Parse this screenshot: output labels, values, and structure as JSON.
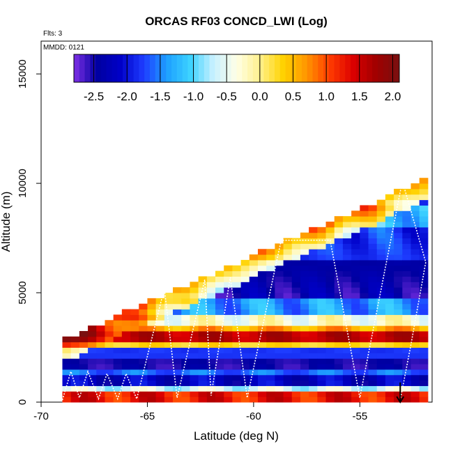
{
  "chart_data": {
    "type": "heatmap",
    "title": "ORCAS RF03 CONCD_LWI (Log)",
    "annotations": {
      "flights": "Flts: 3",
      "date": "MMDD: 0121"
    },
    "xlabel": "Latitude (deg N)",
    "ylabel": "Altitude (m)",
    "xlim": [
      -70,
      -51.6
    ],
    "ylim": [
      0,
      16500
    ],
    "x_ticks": [
      -70,
      -65,
      -60,
      -55
    ],
    "x_tick_labels": [
      "-70",
      "-65",
      "-60",
      "-55"
    ],
    "y_ticks": [
      0,
      5000,
      10000,
      15000
    ],
    "y_tick_labels": [
      "0",
      "5000",
      "10000",
      "15000"
    ],
    "colorbar": {
      "range": [
        -2.8,
        2.1
      ],
      "ticks": [
        -2.5,
        -2.0,
        -1.5,
        -1.0,
        -0.5,
        0.0,
        0.5,
        1.0,
        1.5,
        2.0
      ],
      "tick_labels": [
        "-2.5",
        "-2.0",
        "-1.5",
        "-1.0",
        "-0.5",
        "0.0",
        "0.5",
        "1.0",
        "1.5",
        "2.0"
      ],
      "colors": [
        "#7f2fe6",
        "#0000a0",
        "#0000c8",
        "#1e3cff",
        "#1ea0ff",
        "#3cd2ff",
        "#c8f0ff",
        "#ffffe6",
        "#fff08c",
        "#ffd200",
        "#ff9600",
        "#ff3c00",
        "#dc0000",
        "#a00000",
        "#7a1010"
      ]
    },
    "domain": {
      "lat_min": -69.0,
      "lat_max": -51.8,
      "alt_bottom": 0,
      "alt_top_at_south": 2800,
      "alt_top_at_north": 10200
    },
    "layers": [
      {
        "alt_range": [
          0,
          400
        ],
        "value": 1.3
      },
      {
        "alt_range": [
          400,
          800
        ],
        "value": -0.6
      },
      {
        "alt_range": [
          800,
          1200
        ],
        "value": -2.2
      },
      {
        "alt_range": [
          1200,
          1600
        ],
        "value": -1.6
      },
      {
        "alt_range": [
          1600,
          2000
        ],
        "value": -2.5
      },
      {
        "alt_range": [
          2000,
          2400
        ],
        "value": -1.8
      },
      {
        "alt_range": [
          2400,
          2800
        ],
        "value": 0.3
      },
      {
        "alt_range": [
          2800,
          3200
        ],
        "value": 1.6
      },
      {
        "alt_range": [
          3200,
          3600
        ],
        "value": 0.6
      },
      {
        "alt_range": [
          3600,
          4000
        ],
        "value": -0.3
      },
      {
        "alt_range": [
          4000,
          4800
        ],
        "value": -1.4
      },
      {
        "alt_range": [
          4800,
          6500
        ],
        "value": -2.4
      },
      {
        "alt_range": [
          6500,
          8000
        ],
        "value": -1.8
      },
      {
        "alt_range": [
          8000,
          9000
        ],
        "value": -1.2
      },
      {
        "alt_range": [
          9000,
          10200
        ],
        "value": -2.1
      }
    ],
    "flight_track": [
      {
        "lat": -69.0,
        "alt": 100
      },
      {
        "lat": -68.6,
        "alt": 1400
      },
      {
        "lat": -68.2,
        "alt": 200
      },
      {
        "lat": -67.8,
        "alt": 1400
      },
      {
        "lat": -67.3,
        "alt": 150
      },
      {
        "lat": -66.9,
        "alt": 1300
      },
      {
        "lat": -66.4,
        "alt": 150
      },
      {
        "lat": -66.0,
        "alt": 1300
      },
      {
        "lat": -65.5,
        "alt": 150
      },
      {
        "lat": -64.2,
        "alt": 5200
      },
      {
        "lat": -63.6,
        "alt": 200
      },
      {
        "lat": -62.3,
        "alt": 5600
      },
      {
        "lat": -62.0,
        "alt": 300
      },
      {
        "lat": -61.1,
        "alt": 5700
      },
      {
        "lat": -60.3,
        "alt": 200
      },
      {
        "lat": -58.7,
        "alt": 7400
      },
      {
        "lat": -56.4,
        "alt": 7400
      },
      {
        "lat": -55.0,
        "alt": 200
      },
      {
        "lat": -53.0,
        "alt": 10100
      },
      {
        "lat": -51.9,
        "alt": 6400
      },
      {
        "lat": -52.6,
        "alt": 2600
      },
      {
        "lat": -53.1,
        "alt": 100
      }
    ],
    "arrow": {
      "lat": -53.1,
      "alt_from": 900,
      "alt_to": 0
    }
  }
}
